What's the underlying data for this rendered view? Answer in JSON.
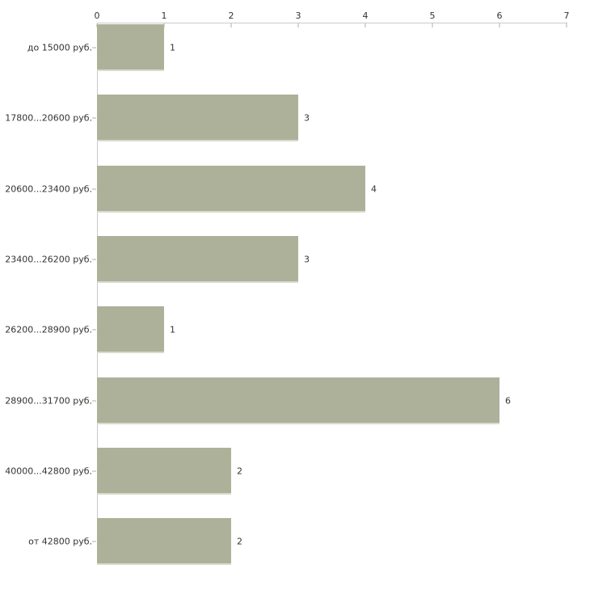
{
  "chart_data": {
    "type": "bar",
    "orientation": "horizontal",
    "categories": [
      "до 15000 руб.",
      "17800...20600 руб.",
      "20600...23400 руб.",
      "23400...26200 руб.",
      "26200...28900 руб.",
      "28900...31700 руб.",
      "40000...42800 руб.",
      "от 42800 руб."
    ],
    "values": [
      1,
      3,
      4,
      3,
      1,
      6,
      2,
      2
    ],
    "xlim": [
      0,
      7
    ],
    "x_ticks": [
      0,
      1,
      2,
      3,
      4,
      5,
      6,
      7
    ],
    "x_axis_position": "top",
    "grid": false,
    "legend": false,
    "colors": {
      "bar_fill": "#adb199",
      "bar_bottom_edge": "#d8dbcd",
      "axis_line": "#c9c9c9",
      "tick_mark": "#d9dac5",
      "text": "#333333",
      "background": "#ffffff"
    }
  }
}
